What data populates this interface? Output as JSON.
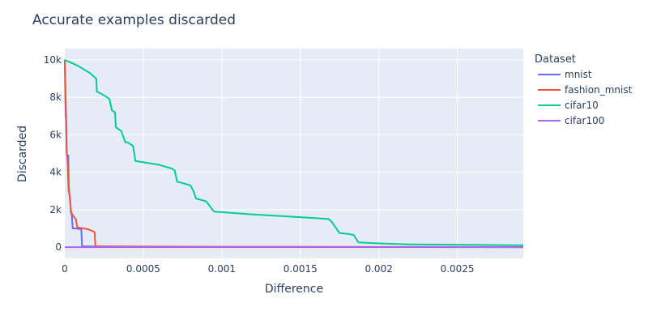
{
  "chart_data": {
    "type": "line",
    "title": "Accurate examples discarded",
    "xlabel": "Difference",
    "ylabel": "Discarded",
    "xlim": [
      0,
      0.00292
    ],
    "ylim": [
      -600,
      10600
    ],
    "x_ticks": [
      {
        "value": 0,
        "label": "0"
      },
      {
        "value": 0.0005,
        "label": "0.0005"
      },
      {
        "value": 0.001,
        "label": "0.001"
      },
      {
        "value": 0.0015,
        "label": "0.0015"
      },
      {
        "value": 0.002,
        "label": "0.002"
      },
      {
        "value": 0.0025,
        "label": "0.0025"
      }
    ],
    "y_ticks": [
      {
        "value": 0,
        "label": "0"
      },
      {
        "value": 2000,
        "label": "2k"
      },
      {
        "value": 4000,
        "label": "4k"
      },
      {
        "value": 6000,
        "label": "6k"
      },
      {
        "value": 8000,
        "label": "8k"
      },
      {
        "value": 10000,
        "label": "10k"
      }
    ],
    "grid": true,
    "legend": {
      "title": "Dataset",
      "placement": "right"
    },
    "series": [
      {
        "name": "mnist",
        "color": "#636efa",
        "points": [
          [
            0,
            10000
          ],
          [
            2e-06,
            8600
          ],
          [
            5e-06,
            7000
          ],
          [
            8e-06,
            6800
          ],
          [
            1.2e-05,
            5100
          ],
          [
            1.5e-05,
            4900
          ],
          [
            1.8e-05,
            4800
          ],
          [
            2.2e-05,
            4900
          ],
          [
            2.6e-05,
            3200
          ],
          [
            3e-05,
            2800
          ],
          [
            3.4e-05,
            2600
          ],
          [
            3.8e-05,
            1900
          ],
          [
            4.5e-05,
            1700
          ],
          [
            5e-05,
            1000
          ],
          [
            7e-05,
            1000
          ],
          [
            0.000105,
            950
          ],
          [
            0.00011,
            50
          ],
          [
            0.00015,
            40
          ],
          [
            0.0003,
            30
          ],
          [
            0.001,
            15
          ],
          [
            0.002,
            5
          ],
          [
            0.00292,
            0
          ]
        ]
      },
      {
        "name": "fashion_mnist",
        "color": "#EF553B",
        "points": [
          [
            0,
            10000
          ],
          [
            4e-06,
            8500
          ],
          [
            8e-06,
            7000
          ],
          [
            1.2e-05,
            5200
          ],
          [
            1.8e-05,
            4500
          ],
          [
            2.4e-05,
            3000
          ],
          [
            3e-05,
            2800
          ],
          [
            4e-05,
            1900
          ],
          [
            5e-05,
            1700
          ],
          [
            7e-05,
            1500
          ],
          [
            8e-05,
            1050
          ],
          [
            0.00012,
            1000
          ],
          [
            0.00015,
            950
          ],
          [
            0.00018,
            850
          ],
          [
            0.00019,
            800
          ],
          [
            0.000195,
            50
          ],
          [
            0.0003,
            40
          ],
          [
            0.0006,
            30
          ],
          [
            0.001,
            20
          ],
          [
            0.002,
            10
          ],
          [
            0.00292,
            5
          ]
        ]
      },
      {
        "name": "cifar10",
        "color": "#00cc96",
        "points": [
          [
            0,
            10000
          ],
          [
            8e-05,
            9700
          ],
          [
            0.00016,
            9300
          ],
          [
            0.000185,
            9100
          ],
          [
            0.0002,
            9000
          ],
          [
            0.000205,
            8300
          ],
          [
            0.00023,
            8200
          ],
          [
            0.00027,
            8000
          ],
          [
            0.000285,
            7900
          ],
          [
            0.0003,
            7300
          ],
          [
            0.00032,
            7200
          ],
          [
            0.000325,
            6400
          ],
          [
            0.00036,
            6200
          ],
          [
            0.000385,
            5600
          ],
          [
            0.0004,
            5600
          ],
          [
            0.000435,
            5400
          ],
          [
            0.00045,
            4600
          ],
          [
            0.0006,
            4400
          ],
          [
            0.00068,
            4200
          ],
          [
            0.0007,
            4100
          ],
          [
            0.000715,
            3500
          ],
          [
            0.0008,
            3300
          ],
          [
            0.00082,
            3000
          ],
          [
            0.000835,
            2600
          ],
          [
            0.0009,
            2450
          ],
          [
            0.00095,
            1900
          ],
          [
            0.0012,
            1750
          ],
          [
            0.0015,
            1600
          ],
          [
            0.00168,
            1500
          ],
          [
            0.0017,
            1350
          ],
          [
            0.00175,
            750
          ],
          [
            0.00181,
            700
          ],
          [
            0.00184,
            650
          ],
          [
            0.00187,
            250
          ],
          [
            0.002,
            200
          ],
          [
            0.0022,
            150
          ],
          [
            0.0025,
            130
          ],
          [
            0.00292,
            100
          ]
        ]
      },
      {
        "name": "cifar100",
        "color": "#ab63fa",
        "points": [
          [
            0,
            0
          ],
          [
            0.0005,
            0
          ],
          [
            0.001,
            0
          ],
          [
            0.0015,
            0
          ],
          [
            0.002,
            0
          ],
          [
            0.0025,
            0
          ],
          [
            0.00292,
            0
          ]
        ]
      }
    ]
  }
}
